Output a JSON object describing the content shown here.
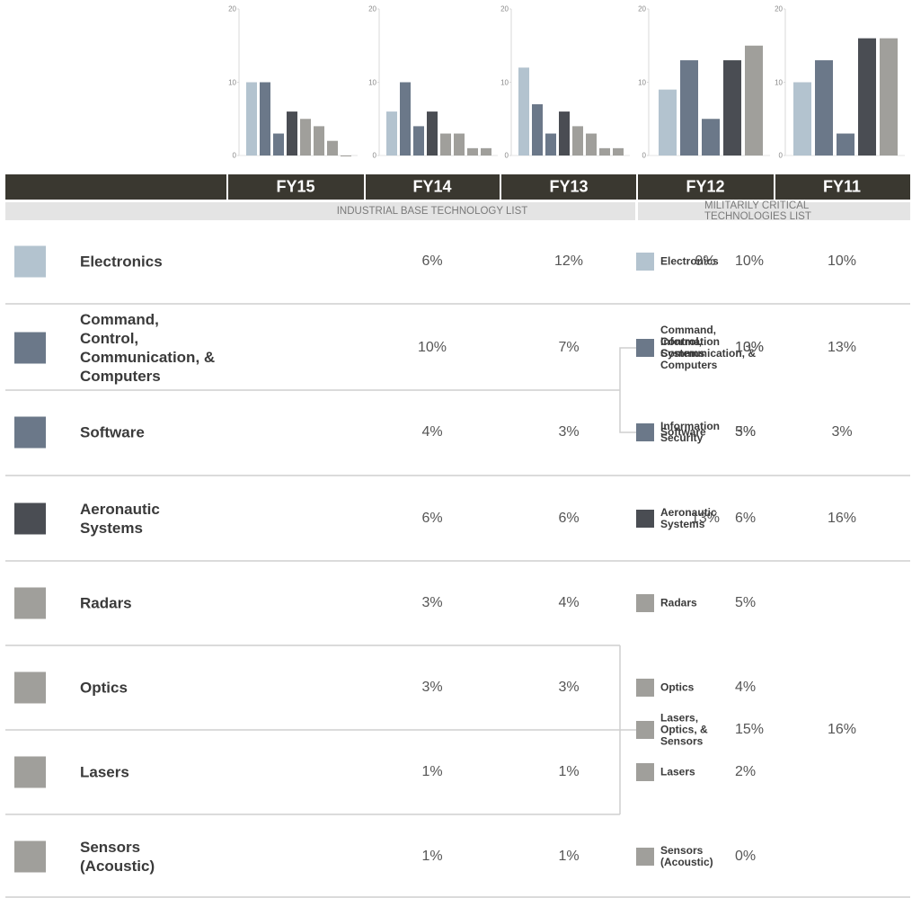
{
  "groups": [
    "INDUSTRIAL BASE TECHNOLOGY LIST",
    "MILITARILY CRITICAL TECHNOLOGIES LIST"
  ],
  "chart_data": [
    {
      "type": "bar",
      "title": "FY15",
      "categories": [
        "Electronics",
        "Command,\nControl,\nCommunication, &\nComputers",
        "Software",
        "Aeronautic\nSystems",
        "Radars",
        "Optics",
        "Lasers",
        "Sensors\n(Acoustic)"
      ],
      "values": [
        10,
        10,
        3,
        6,
        5,
        4,
        2,
        0
      ],
      "value_labels": [
        "10%",
        "10%",
        "3%",
        "6%",
        "5%",
        "4%",
        "2%",
        "0%"
      ],
      "colors": [
        "#b3c3cf",
        "#6b7889",
        "#6b7889",
        "#4a4d53",
        "#a09f9b",
        "#a09f9b",
        "#a09f9b",
        "#a09f9b"
      ],
      "ylim": [
        0,
        20
      ],
      "yticks": [
        0,
        10,
        20
      ]
    },
    {
      "type": "bar",
      "title": "FY14",
      "values": [
        6,
        10,
        4,
        6,
        3,
        3,
        1,
        1
      ],
      "value_labels": [
        "6%",
        "10%",
        "4%",
        "6%",
        "3%",
        "3%",
        "1%",
        "1%"
      ],
      "colors": [
        "#b3c3cf",
        "#6b7889",
        "#6b7889",
        "#4a4d53",
        "#a09f9b",
        "#a09f9b",
        "#a09f9b",
        "#a09f9b"
      ],
      "ylim": [
        0,
        20
      ],
      "yticks": [
        0,
        10,
        20
      ]
    },
    {
      "type": "bar",
      "title": "FY13",
      "values": [
        12,
        7,
        3,
        6,
        4,
        3,
        1,
        1
      ],
      "value_labels": [
        "12%",
        "7%",
        "3%",
        "6%",
        "4%",
        "3%",
        "1%",
        "1%"
      ],
      "colors": [
        "#b3c3cf",
        "#6b7889",
        "#6b7889",
        "#4a4d53",
        "#a09f9b",
        "#a09f9b",
        "#a09f9b",
        "#a09f9b"
      ],
      "ylim": [
        0,
        20
      ],
      "yticks": [
        0,
        10,
        20
      ]
    },
    {
      "type": "bar",
      "title": "FY12",
      "categories": [
        null,
        "Information\nSystems",
        "Information\nSecurity",
        null,
        "Lasers,\nOptics, &\nSensors"
      ],
      "values": [
        9,
        13,
        5,
        13,
        15
      ],
      "value_labels": [
        "9%",
        "13%",
        "5%",
        "13%",
        "15%"
      ],
      "colors": [
        "#b3c3cf",
        "#6b7889",
        "#6b7889",
        "#4a4d53",
        "#a09f9b"
      ],
      "ylim": [
        0,
        20
      ],
      "yticks": [
        0,
        10,
        20
      ]
    },
    {
      "type": "bar",
      "title": "FY11",
      "values": [
        10,
        13,
        3,
        16,
        16
      ],
      "value_labels": [
        "10%",
        "13%",
        "3%",
        "16%",
        "16%"
      ],
      "colors": [
        "#b3c3cf",
        "#6b7889",
        "#6b7889",
        "#4a4d53",
        "#a09f9b"
      ],
      "ylim": [
        0,
        20
      ],
      "yticks": [
        0,
        10,
        20
      ]
    }
  ]
}
